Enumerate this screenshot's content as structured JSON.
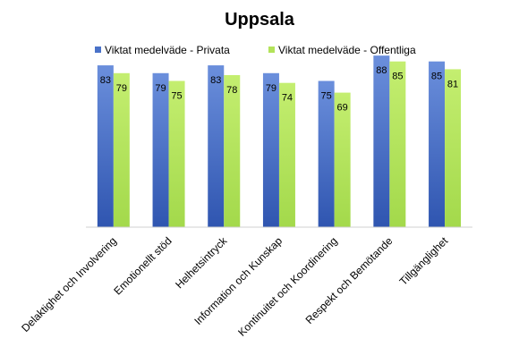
{
  "chart_data": {
    "type": "bar",
    "title": "Uppsala",
    "xlabel": "",
    "ylabel": "",
    "ylim": [
      0,
      100
    ],
    "grid": false,
    "legend": "top",
    "categories": [
      "Delaktighet och Involvering",
      "Emotionellt stöd",
      "Helhetsintryck",
      "Information och Kunskap",
      "Kontinuitet och Koordinering",
      "Respekt och Bemötande",
      "Tillgänglighet"
    ],
    "series": [
      {
        "name": "Viktat medelväde - Privata",
        "color": "#4a72c8",
        "values": [
          83,
          79,
          83,
          79,
          75,
          88,
          85
        ]
      },
      {
        "name": "Viktat medelväde - Offentliga",
        "color": "#b3e35a",
        "values": [
          79,
          75,
          78,
          74,
          69,
          85,
          81
        ]
      }
    ]
  }
}
